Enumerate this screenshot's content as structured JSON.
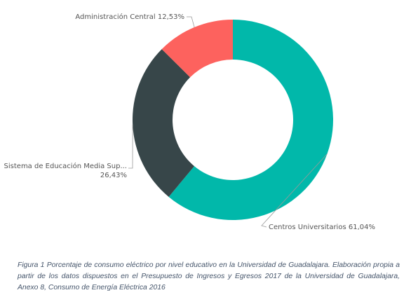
{
  "chart_data": {
    "type": "pie",
    "donut": true,
    "categories": [
      "Centros Universitarios",
      "Sistema de Educación Media Sup...",
      "Administración Central"
    ],
    "values": [
      61.04,
      26.43,
      12.53
    ],
    "value_labels": [
      "61,04%",
      "26,43%",
      "12,53%"
    ],
    "colors": [
      "#01b8aa",
      "#374649",
      "#fd625e"
    ],
    "title": "",
    "legend": "none"
  },
  "caption": "Figura 1 Porcentaje de consumo eléctrico por nivel educativo en la Universidad de Guadalajara. Elaboración propia a partir de los datos dispuestos en el Presupuesto de Ingresos y Egresos 2017 de la Universidad de Guadalajara, Anexo 8, Consumo de Energía Eléctrica 2016"
}
